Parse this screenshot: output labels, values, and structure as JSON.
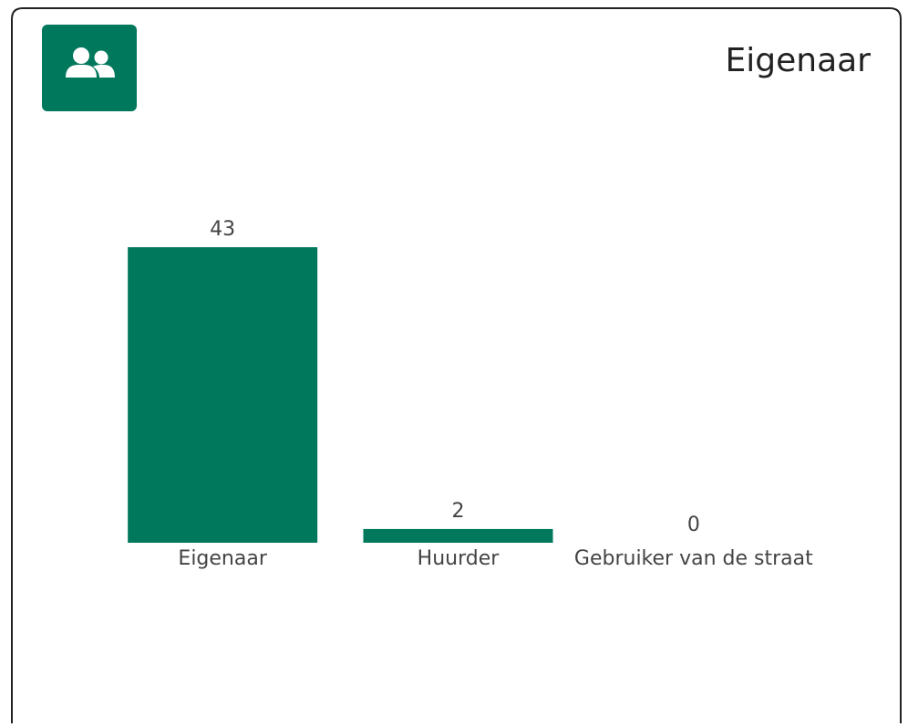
{
  "chart_data": {
    "type": "bar",
    "title": "Eigenaar",
    "categories": [
      "Eigenaar",
      "Huurder",
      "Gebruiker van de straat"
    ],
    "values": [
      43,
      2,
      0
    ],
    "color": "#00785c"
  }
}
